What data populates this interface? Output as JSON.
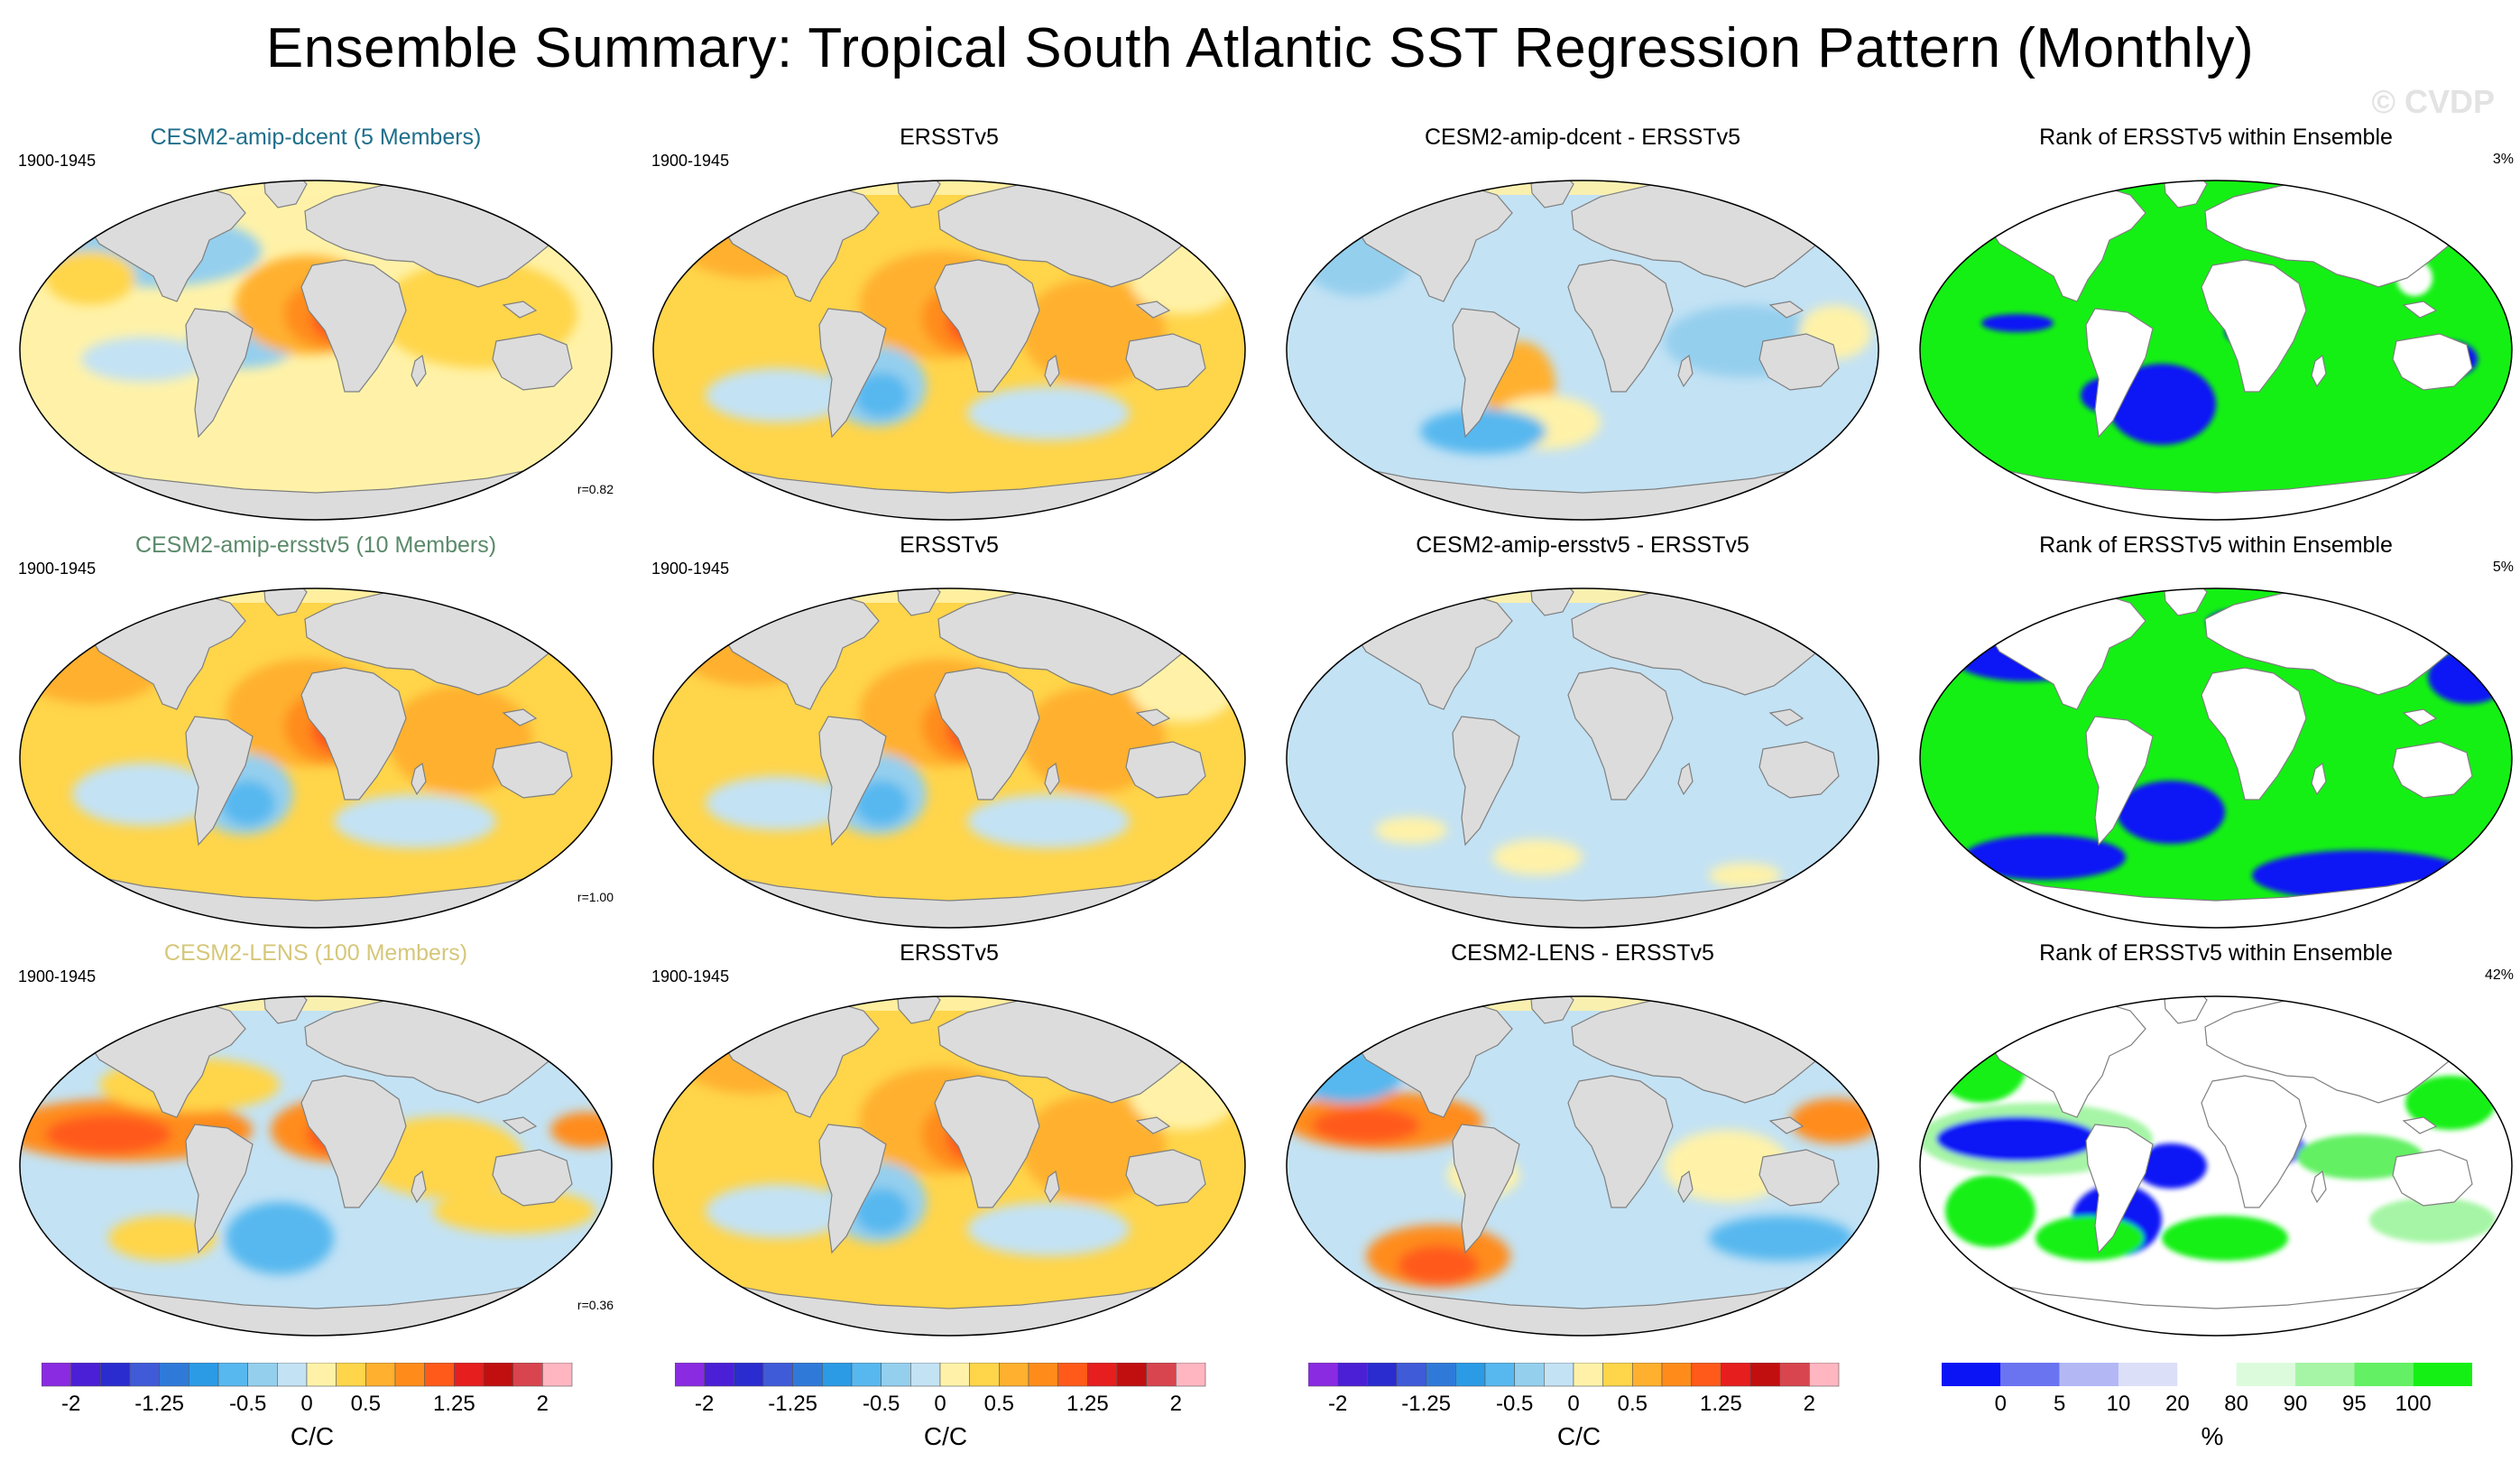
{
  "figure": {
    "title": "Ensemble Summary: Tropical South Atlantic SST Regression Pattern (Monthly)",
    "watermark": "© CVDP"
  },
  "rows": [
    {
      "period": "1900-1945",
      "model_title": "CESM2-amip-dcent (5 Members)",
      "model_title_color": "#1f6f8b",
      "correlation": "r=0.82",
      "obs_title": "ERSSTv5",
      "diff_title": "CESM2-amip-dcent - ERSSTv5",
      "rank_title": "Rank of ERSSTv5 within Ensemble",
      "rank_percent": "3%"
    },
    {
      "period": "1900-1945",
      "model_title": "CESM2-amip-ersstv5 (10 Members)",
      "model_title_color": "#5b8a6a",
      "correlation": "r=1.00",
      "obs_title": "ERSSTv5",
      "diff_title": "CESM2-amip-ersstv5 - ERSSTv5",
      "rank_title": "Rank of ERSSTv5 within Ensemble",
      "rank_percent": "5%"
    },
    {
      "period": "1900-1945",
      "model_title": "CESM2-LENS (100 Members)",
      "model_title_color": "#d6c77a",
      "correlation": "r=0.36",
      "obs_title": "ERSSTv5",
      "diff_title": "CESM2-LENS - ERSSTv5",
      "rank_title": "Rank of ERSSTv5 within Ensemble",
      "rank_percent": "42%"
    }
  ],
  "colorbars": {
    "sst": {
      "unit": "C/C",
      "tick_labels": [
        "-2",
        "-1.25",
        "-0.5",
        "0",
        "0.5",
        "1.25",
        "2"
      ],
      "tick_values": [
        -2,
        -1.25,
        -0.5,
        0,
        0.5,
        1.25,
        2
      ],
      "bounds": [
        -2,
        -1.75,
        -1.5,
        -1.25,
        -1,
        -0.75,
        -0.5,
        -0.25,
        0,
        0.25,
        0.5,
        0.75,
        1,
        1.25,
        1.5,
        1.75,
        2
      ],
      "colors": [
        "#8a2be2",
        "#4b1fd6",
        "#2a2ccf",
        "#3f5bd8",
        "#2f7ad9",
        "#2b9be6",
        "#57b8ef",
        "#94cfee",
        "#c3e2f4",
        "#fff2a8",
        "#ffd54a",
        "#ffb02e",
        "#ff8c1a",
        "#ff5a1a",
        "#e61e1e",
        "#c10f0f",
        "#d8454e",
        "#ffb6c1"
      ]
    },
    "rank": {
      "unit": "%",
      "tick_labels": [
        "0",
        "5",
        "10",
        "20",
        "80",
        "90",
        "95",
        "100"
      ],
      "colors": [
        "#0a14f5",
        "#6b74f0",
        "#b3b8f5",
        "#dcdff8",
        "#ffffff",
        "#dcfbdc",
        "#a6f5a6",
        "#64f064",
        "#14f014"
      ]
    }
  },
  "chart_data": {
    "type": "heatmap",
    "title": "Ensemble Summary: Tropical South Atlantic SST Regression Pattern (Monthly)",
    "layout": "3 rows x 4 columns of global map panels",
    "columns": [
      "ensemble mean regression",
      "observations (ERSSTv5)",
      "ensemble mean minus observations",
      "rank of observations within ensemble"
    ],
    "value_range": [
      -2,
      2
    ],
    "units": "C/C",
    "rank_range": [
      0,
      100
    ],
    "rank_units": "%"
  }
}
